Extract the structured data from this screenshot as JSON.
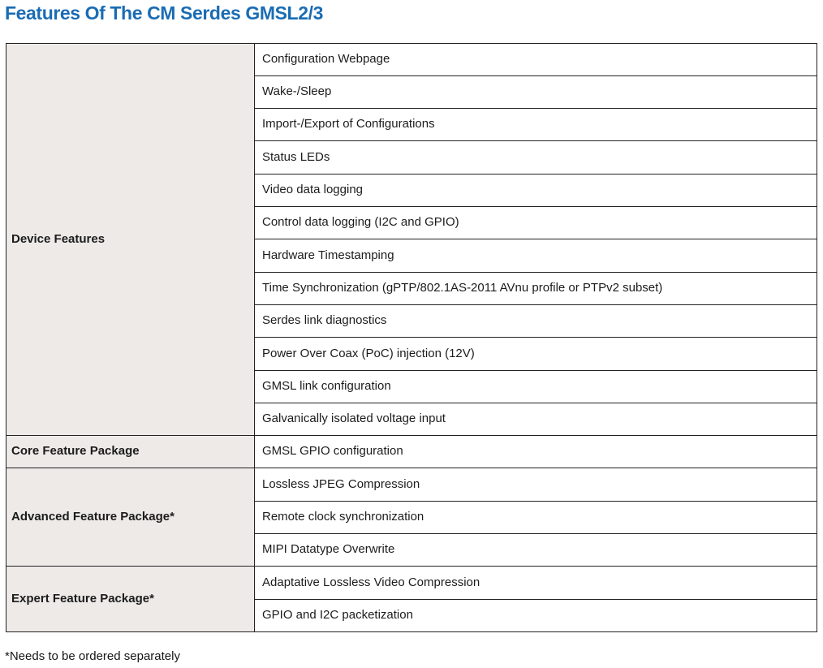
{
  "page": {
    "title": "Features Of The CM Serdes GMSL2/3",
    "footnote": "*Needs to be ordered separately"
  },
  "colors": {
    "title_blue": "#1a6cb3",
    "group_cell_bg": "#edeae8",
    "table_border": "#222222"
  },
  "table": {
    "groups": [
      {
        "label": "Device Features",
        "features": [
          "Configuration Webpage",
          "Wake-/Sleep",
          "Import-/Export of Configurations",
          "Status LEDs",
          "Video data logging",
          "Control data logging (I2C and GPIO)",
          "Hardware Timestamping",
          "Time Synchronization (gPTP/802.1AS-2011 AVnu profile or PTPv2 subset)",
          "Serdes link diagnostics",
          "Power Over Coax (PoC) injection (12V)",
          "GMSL link configuration",
          "Galvanically isolated voltage input"
        ]
      },
      {
        "label": "Core Feature Package",
        "features": [
          "GMSL GPIO configuration"
        ]
      },
      {
        "label": "Advanced Feature Package*",
        "features": [
          "Lossless JPEG Compression",
          "Remote clock synchronization",
          "MIPI Datatype Overwrite"
        ]
      },
      {
        "label": "Expert Feature Package*",
        "features": [
          "Adaptative Lossless Video Compression",
          "GPIO and I2C packetization"
        ]
      }
    ]
  }
}
